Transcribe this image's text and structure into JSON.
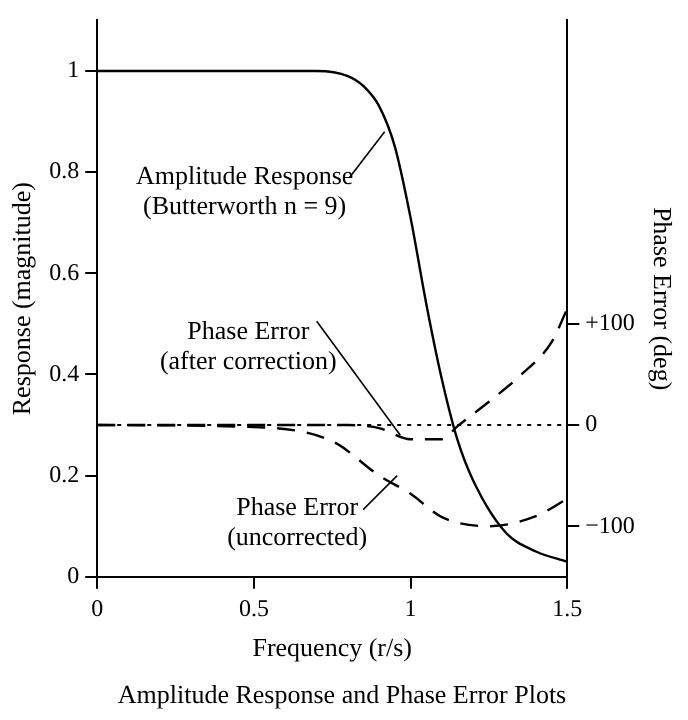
{
  "chart_data": {
    "type": "line",
    "title": "Amplitude Response and Phase Error Plots",
    "xlabel": "Frequency (r/s)",
    "ylabel": "Response (magnitude)",
    "y2label": "Phase Error (deg)",
    "xlim": [
      0,
      1.5
    ],
    "xticks": [
      0,
      0.5,
      1,
      1.5
    ],
    "ylim": [
      0,
      1.1
    ],
    "yticks": [
      0,
      0.2,
      0.4,
      0.6,
      0.8,
      1
    ],
    "y2lim": [
      -150,
      400
    ],
    "y2ticks": [
      {
        "value": -100,
        "label": "−100"
      },
      0,
      {
        "value": 100,
        "label": "+100"
      }
    ],
    "grid": false,
    "legend": false,
    "marker": "none",
    "series": [
      {
        "color": "#000000",
        "line_style": "solid",
        "x": [
          0,
          0.7,
          0.8,
          0.85,
          0.9,
          0.95,
          1,
          1.05,
          1.1,
          1.15,
          1.2,
          1.3,
          1.4,
          1.5
        ],
        "values": [
          1,
          1,
          0.99,
          0.97,
          0.93,
          0.85,
          0.71,
          0.54,
          0.39,
          0.27,
          0.19,
          0.09,
          0.05,
          0.03
        ]
      },
      {
        "color": "#000000",
        "line_style": "dashed",
        "axis": "y2",
        "x": [
          0,
          0.5,
          0.75,
          0.9,
          1,
          1.1,
          1.25,
          1.4,
          1.5
        ],
        "values": [
          0,
          -2,
          -16,
          -50,
          -68,
          -91,
          -100,
          -90,
          -73
        ]
      },
      {
        "color": "#000000",
        "line_style": "dashed",
        "axis": "y2",
        "x": [
          0,
          0.8,
          0.9,
          1,
          1.1,
          1.15,
          1.25,
          1.35,
          1.45,
          1.5
        ],
        "values": [
          0,
          0,
          -3,
          -14,
          -14,
          -1,
          23,
          49,
          82,
          115
        ]
      }
    ],
    "ref_lines": [
      {
        "axis": "y2",
        "value": 0,
        "line_style": "dotted",
        "color": "#000000"
      }
    ],
    "annotations": [
      {
        "text": "Amplitude Response\n(Butterworth n = 9)",
        "x": 0.93,
        "y": 0.88
      },
      {
        "text": "Phase Error\n(after correction)",
        "x": 0.98,
        "y": 0.28
      },
      {
        "text": "Phase Error\n(uncorrected)",
        "x": 0.97,
        "y": 0.2
      }
    ]
  }
}
